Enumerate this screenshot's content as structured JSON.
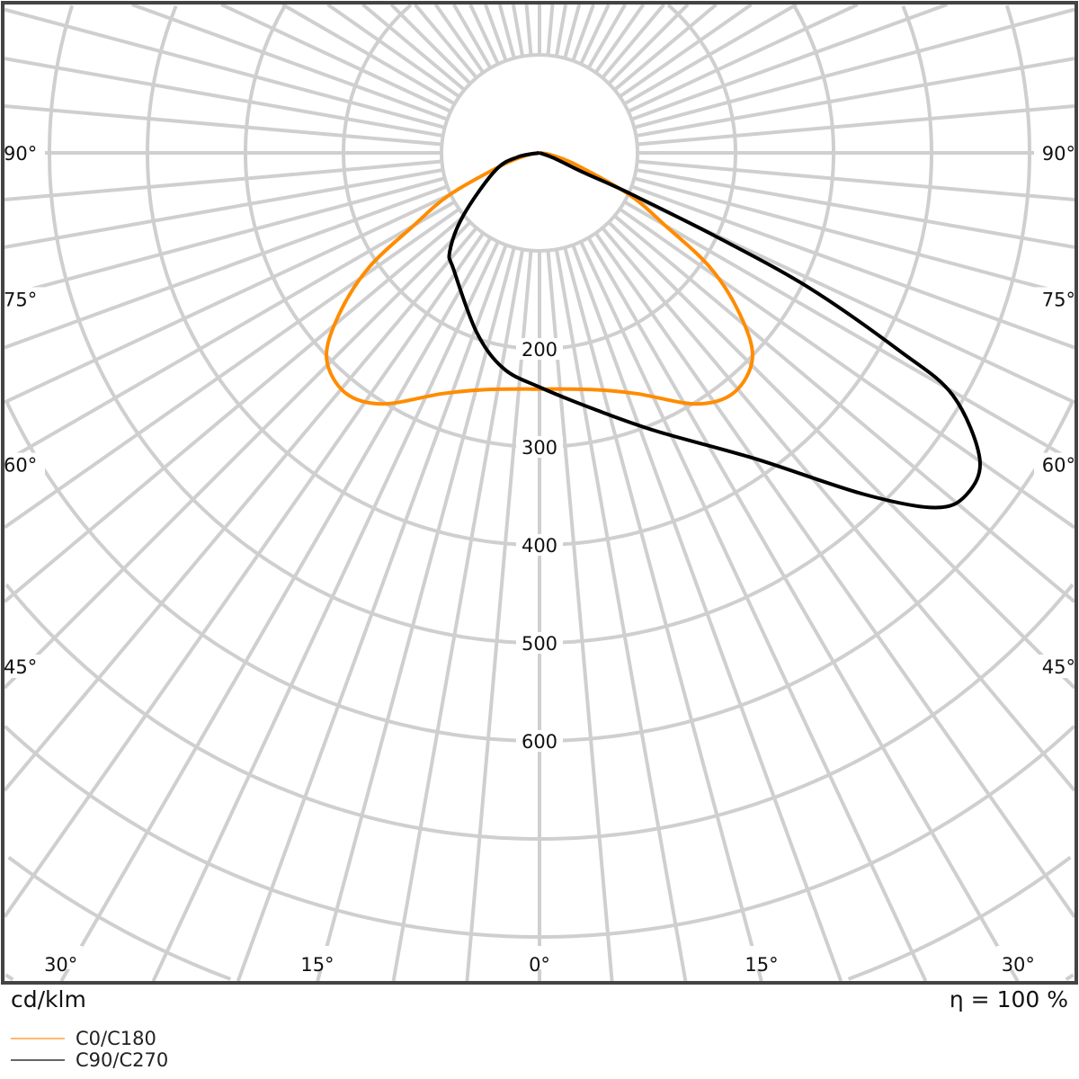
{
  "chart_data": {
    "type": "polar",
    "unit_label": "cd/klm",
    "efficiency_label": "η = 100 %",
    "radial_tick_labels": [
      "200",
      "300",
      "400",
      "500",
      "600"
    ],
    "radial_ticks": [
      200,
      300,
      400,
      500,
      600
    ],
    "radial_grid_step": 100,
    "angular_grid_step_deg": 5,
    "angle_labels_bottom": [
      "30°",
      "15°",
      "0°",
      "15°",
      "30°"
    ],
    "angle_labels_side": [
      "45°",
      "60°",
      "75°",
      "90°"
    ],
    "grid": true,
    "legend_placement": "bottom-left",
    "series": [
      {
        "name": "C0/C180",
        "color": "#ff8c00",
        "legend_color": "#ffb870",
        "gamma": [
          -90,
          -80,
          -72,
          -65,
          -60,
          -56,
          -51,
          -46,
          -39,
          -32,
          -22,
          -13,
          0,
          13,
          22,
          32,
          39,
          46,
          51,
          56,
          60,
          65,
          72,
          80,
          90
        ],
        "values": [
          0,
          12,
          39,
          101,
          148,
          211,
          264,
          302,
          315,
          302,
          265,
          248,
          241,
          248,
          265,
          302,
          315,
          302,
          264,
          211,
          148,
          101,
          39,
          12,
          0
        ]
      },
      {
        "name": "C90/C270",
        "color": "#000000",
        "legend_color": "#666666",
        "gamma": [
          -90,
          -79,
          -68,
          -50.5,
          -42.3,
          -36.2,
          -19.3,
          -9.5,
          0,
          11.9,
          22.8,
          35.2,
          43.5,
          48.1,
          51.3,
          55.2,
          59.6,
          61.2,
          63.4,
          64.6,
          65.8,
          66,
          70,
          90
        ],
        "values": [
          0,
          23,
          49,
          101,
          136,
          148,
          194,
          223,
          239,
          267,
          308,
          382,
          480,
          542,
          558,
          547,
          489,
          419,
          308,
          203,
          101,
          50,
          15,
          0
        ]
      }
    ]
  }
}
